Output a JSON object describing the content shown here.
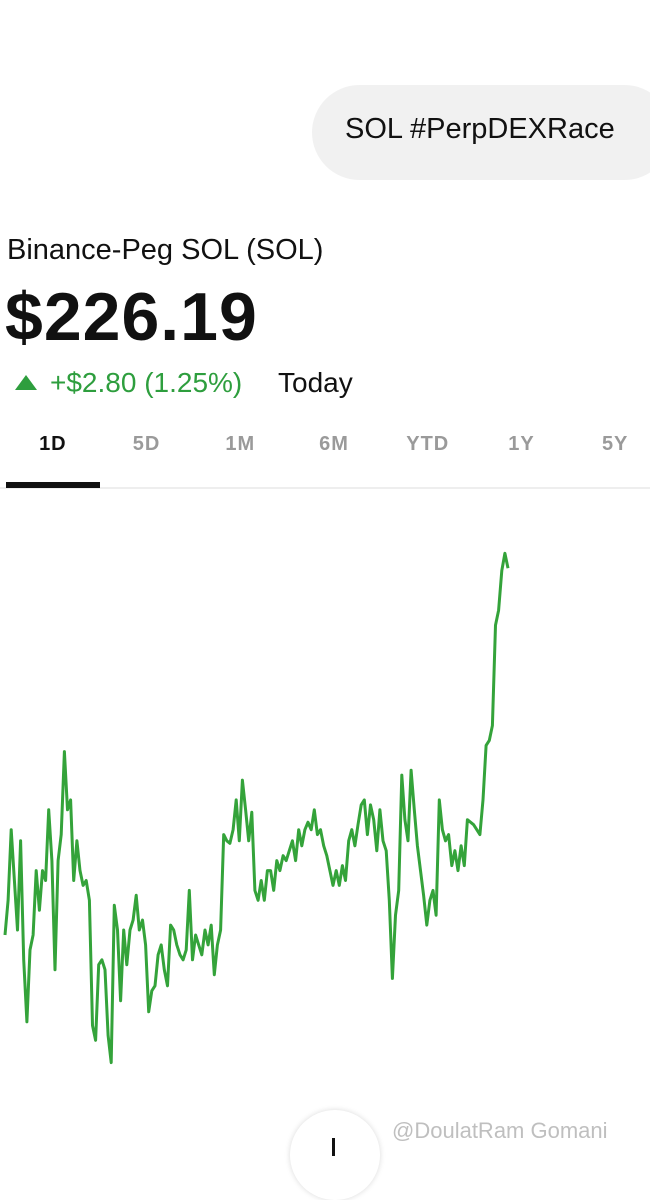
{
  "message": "SOL #PerpDEXRace",
  "asset": {
    "name": "Binance-Peg SOL (SOL)",
    "price": "$226.19",
    "change": "+$2.80 (1.25%)",
    "period": "Today"
  },
  "tabs": [
    "1D",
    "5D",
    "1M",
    "6M",
    "YTD",
    "1Y",
    "5Y"
  ],
  "watermark": "@DoulatRam Gomani",
  "chart_data": {
    "type": "line",
    "color": "#34a33a",
    "ylim": [
      222.06,
      226.74
    ],
    "values": [
      223.23,
      223.51,
      224.08,
      223.67,
      223.27,
      223.99,
      223.03,
      222.53,
      223.11,
      223.23,
      223.75,
      223.43,
      223.75,
      223.67,
      224.24,
      223.83,
      222.95,
      223.83,
      224.04,
      224.71,
      224.24,
      224.32,
      223.67,
      223.99,
      223.75,
      223.63,
      223.67,
      223.51,
      222.5,
      222.38,
      222.99,
      223.03,
      222.95,
      222.42,
      222.2,
      223.47,
      223.27,
      222.7,
      223.27,
      222.99,
      223.27,
      223.35,
      223.55,
      223.27,
      223.35,
      223.15,
      222.61,
      222.78,
      222.82,
      223.07,
      223.15,
      222.95,
      222.82,
      223.31,
      223.27,
      223.15,
      223.07,
      223.03,
      223.11,
      223.59,
      223.03,
      223.23,
      223.15,
      223.07,
      223.27,
      223.15,
      223.31,
      222.91,
      223.15,
      223.27,
      224.04,
      223.99,
      223.97,
      224.08,
      224.32,
      223.99,
      224.48,
      224.24,
      223.99,
      224.22,
      223.59,
      223.51,
      223.67,
      223.51,
      223.75,
      223.75,
      223.59,
      223.83,
      223.75,
      223.87,
      223.83,
      223.91,
      223.99,
      223.83,
      224.08,
      223.95,
      224.08,
      224.14,
      224.08,
      224.24,
      224.04,
      224.08,
      223.95,
      223.87,
      223.75,
      223.63,
      223.75,
      223.63,
      223.79,
      223.67,
      223.99,
      224.08,
      223.95,
      224.12,
      224.28,
      224.32,
      224.04,
      224.28,
      224.16,
      223.91,
      224.24,
      223.99,
      223.91,
      223.51,
      222.88,
      223.39,
      223.59,
      224.52,
      224.16,
      223.99,
      224.56,
      224.24,
      223.95,
      223.75,
      223.55,
      223.31,
      223.51,
      223.59,
      223.39,
      224.32,
      224.08,
      223.99,
      224.04,
      223.79,
      223.91,
      223.75,
      223.95,
      223.79,
      224.16,
      224.14,
      224.12,
      224.08,
      224.04,
      224.32,
      224.76,
      224.8,
      224.92,
      225.73,
      225.85,
      226.17,
      226.31,
      226.19
    ]
  }
}
